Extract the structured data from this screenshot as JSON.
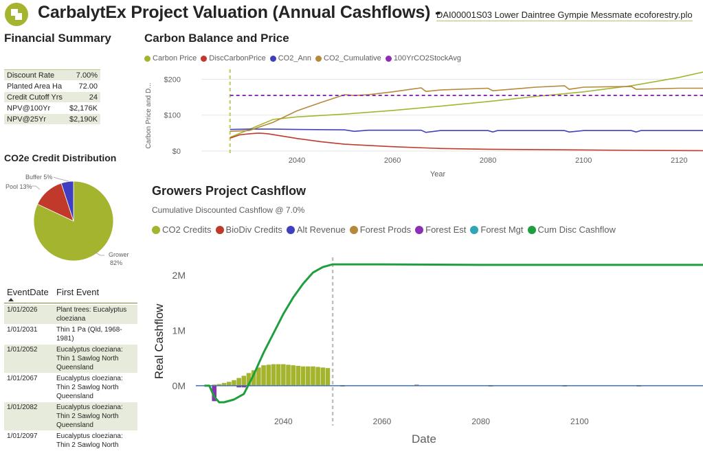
{
  "header": {
    "title": "CarbalytEx Project Valuation (Annual Cashflows) -",
    "file": "DAI00001S03 Lower Daintree Gympie Messmate ecoforestry.plo"
  },
  "summary": {
    "heading": "Financial Summary",
    "rows": [
      {
        "label": "Discount Rate",
        "value": "7.00%"
      },
      {
        "label": "Planted Area Ha",
        "value": "72.00"
      },
      {
        "label": "Credit Cutoff Yrs",
        "value": "24"
      },
      {
        "label": "NPV@100Yr",
        "value": "$2,176K"
      },
      {
        "label": "NPV@25Yr",
        "value": "$2,190K"
      }
    ]
  },
  "pie": {
    "heading": "CO2e Credit Distribution",
    "labels": {
      "buffer": "Buffer 5%",
      "pool": "Pool 13%",
      "grower_name": "Grower",
      "grower_pct": "82%"
    }
  },
  "events": {
    "col_date": "EventDate",
    "col_event": "First Event",
    "rows": [
      {
        "date": "1/01/2026",
        "event": [
          "Plant trees: Eucalyptus",
          "cloeziana"
        ]
      },
      {
        "date": "1/01/2031",
        "event": [
          "Thin 1 Pa (Qld, 1968-",
          "1981)"
        ]
      },
      {
        "date": "1/01/2052",
        "event": [
          "Eucalyptus cloeziana:",
          "Thin 1 Sawlog North",
          "Queensland"
        ]
      },
      {
        "date": "1/01/2067",
        "event": [
          "Eucalyptus cloeziana:",
          "Thin 2 Sawlog North",
          "Queensland"
        ]
      },
      {
        "date": "1/01/2082",
        "event": [
          "Eucalyptus cloeziana:",
          "Thin 2 Sawlog North",
          "Queensland"
        ]
      },
      {
        "date": "1/01/2097",
        "event": [
          "Eucalyptus cloeziana:",
          "Thin 2 Sawlog North"
        ]
      }
    ]
  },
  "carbon": {
    "heading": "Carbon Balance and Price",
    "colors": {
      "Carbon Price": "#a5b42f",
      "DiscCarbonPrice": "#c0392b",
      "CO2_Ann": "#3f3fbf",
      "CO2_Cumulative": "#b5883a",
      "100YrCO2StockAvg": "#8b2fb5"
    }
  },
  "cashflow": {
    "heading": "Growers Project Cashflow",
    "subtitle": "Cumulative Discounted Cashflow @ 7.0%",
    "colors": {
      "CO2 Credits": "#a5b42f",
      "BioDiv Credits": "#c0392b",
      "Alt Revenue": "#3f3fbf",
      "Forest Prods": "#b5883a",
      "Forest Est": "#8b2fb5",
      "Forest Mgt": "#2fa5b5",
      "Cum Disc Cashflow": "#1e9e3e"
    }
  },
  "chart_data": [
    {
      "type": "pie",
      "title": "CO2e Credit Distribution",
      "categories": [
        "Grower",
        "Pool",
        "Buffer"
      ],
      "values": [
        82,
        13,
        5
      ],
      "colors": [
        "#a5b42f",
        "#c0392b",
        "#3f3fbf"
      ]
    },
    {
      "type": "line",
      "title": "Carbon Balance and Price",
      "xlabel": "Year",
      "ylabel": "Carbon Price and D...",
      "xlim": [
        2020,
        2125
      ],
      "ylim": [
        0,
        220
      ],
      "x_ticks": [
        2040,
        2060,
        2080,
        2100,
        2120
      ],
      "y_ticks": [
        0,
        100,
        200
      ],
      "y_tick_labels": [
        "$0",
        "$100",
        "$200"
      ],
      "vline_x": 2026,
      "legend": "top-left",
      "series": [
        {
          "name": "Carbon Price",
          "x": [
            2026,
            2030,
            2035,
            2040,
            2050,
            2060,
            2070,
            2080,
            2090,
            2100,
            2110,
            2120,
            2125
          ],
          "y": [
            38,
            60,
            88,
            95,
            103,
            113,
            125,
            138,
            152,
            165,
            182,
            205,
            220
          ]
        },
        {
          "name": "DiscCarbonPrice",
          "x": [
            2026,
            2028,
            2030,
            2032,
            2034,
            2040,
            2045,
            2050,
            2060,
            2070,
            2080,
            2090,
            2100,
            2110,
            2125
          ],
          "y": [
            36,
            45,
            48,
            50,
            48,
            35,
            26,
            19,
            12,
            7,
            5,
            4,
            3,
            2,
            1
          ]
        },
        {
          "name": "CO2_Ann",
          "x": [
            2026,
            2030,
            2035,
            2040,
            2050,
            2052,
            2055,
            2060,
            2066,
            2067,
            2070,
            2080,
            2081,
            2082,
            2090,
            2096,
            2097,
            2100,
            2110,
            2111,
            2112,
            2120,
            2125
          ],
          "y": [
            60,
            61,
            61,
            60,
            59,
            55,
            58,
            58,
            58,
            52,
            57,
            57,
            53,
            57,
            57,
            57,
            53,
            57,
            57,
            53,
            57,
            57,
            57
          ]
        },
        {
          "name": "CO2_Cumulative",
          "x": [
            2026,
            2030,
            2035,
            2040,
            2045,
            2050,
            2052,
            2055,
            2060,
            2066,
            2067,
            2070,
            2080,
            2081,
            2090,
            2096,
            2097,
            2100,
            2110,
            2111,
            2120,
            2125
          ],
          "y": [
            55,
            57,
            80,
            112,
            135,
            157,
            155,
            157,
            165,
            176,
            166,
            170,
            175,
            168,
            178,
            182,
            172,
            178,
            180,
            172,
            175,
            175
          ]
        },
        {
          "name": "100YrCO2StockAvg",
          "x": [
            2026,
            2125
          ],
          "y": [
            155,
            155
          ]
        }
      ]
    },
    {
      "type": "bar",
      "title": "Growers Project Cashflow",
      "subtitle": "Cumulative Discounted Cashflow @ 7.0%",
      "xlabel": "Date",
      "ylabel": "Real Cashflow",
      "xlim": [
        2022,
        2125
      ],
      "ylim": [
        -0.35,
        2.45
      ],
      "y_unit": "M",
      "x_ticks": [
        2040,
        2060,
        2080,
        2100
      ],
      "y_ticks": [
        0,
        1,
        2
      ],
      "y_tick_labels": [
        "0M",
        "1M",
        "2M"
      ],
      "vline_x": 2050,
      "legend": "top-left",
      "series": [
        {
          "name": "CO2 Credits",
          "kind": "bar",
          "x": [
            2026,
            2027,
            2028,
            2029,
            2030,
            2031,
            2032,
            2033,
            2034,
            2035,
            2036,
            2037,
            2038,
            2039,
            2040,
            2041,
            2042,
            2043,
            2044,
            2045,
            2046,
            2047,
            2048,
            2049
          ],
          "y": [
            0.02,
            0.03,
            0.05,
            0.07,
            0.1,
            0.14,
            0.18,
            0.23,
            0.28,
            0.33,
            0.37,
            0.38,
            0.39,
            0.39,
            0.39,
            0.38,
            0.37,
            0.36,
            0.35,
            0.35,
            0.35,
            0.34,
            0.33,
            0.32
          ]
        },
        {
          "name": "BioDiv Credits",
          "kind": "bar",
          "x": [],
          "y": []
        },
        {
          "name": "Alt Revenue",
          "kind": "bar",
          "x": [
            2026,
            2031,
            2032
          ],
          "y": [
            -0.03,
            -0.02,
            -0.02
          ]
        },
        {
          "name": "Forest Prods",
          "kind": "bar",
          "x": [
            2052,
            2067,
            2082,
            2097,
            2112
          ],
          "y": [
            0.01,
            0.02,
            0.01,
            0.01,
            0.01
          ]
        },
        {
          "name": "Forest Est",
          "kind": "bar",
          "x": [
            2026,
            2031,
            2032
          ],
          "y": [
            -0.28,
            -0.03,
            -0.03
          ]
        },
        {
          "name": "Forest Mgt",
          "kind": "bar",
          "x": [],
          "y": []
        },
        {
          "name": "Cum Disc Cashflow",
          "kind": "line",
          "x": [
            2024,
            2025,
            2026,
            2027,
            2028,
            2030,
            2032,
            2034,
            2036,
            2038,
            2040,
            2042,
            2044,
            2046,
            2048,
            2050,
            2060,
            2080,
            2100,
            2125
          ],
          "y": [
            0,
            0,
            -0.2,
            -0.3,
            -0.3,
            -0.25,
            -0.15,
            0.2,
            0.6,
            0.95,
            1.3,
            1.6,
            1.85,
            2.05,
            2.15,
            2.2,
            2.2,
            2.19,
            2.19,
            2.19
          ]
        }
      ]
    }
  ]
}
